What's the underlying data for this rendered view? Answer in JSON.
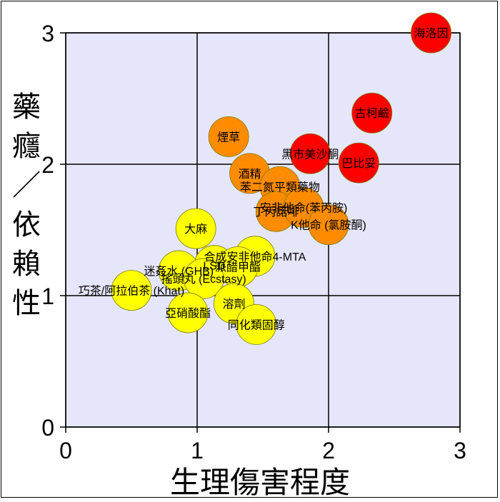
{
  "chart_data": {
    "type": "scatter",
    "xlabel": "生理傷害程度",
    "ylabel": "藥癮／依賴性",
    "xlim": [
      0,
      3
    ],
    "ylim": [
      0,
      3
    ],
    "x_ticks": [
      "0",
      "1",
      "2",
      "3"
    ],
    "y_ticks": [
      "0",
      "1",
      "2",
      "3"
    ],
    "grid": true,
    "background_color": "#e6e6fa",
    "points": [
      {
        "label": "海洛因",
        "x": 2.78,
        "y": 3.0,
        "color": "#ff0000"
      },
      {
        "label": "古柯鹼",
        "x": 2.33,
        "y": 2.39,
        "color": "#ff0000"
      },
      {
        "label": "黑市美沙酮",
        "x": 1.86,
        "y": 2.08,
        "color": "#ff0000"
      },
      {
        "label": "巴比妥",
        "x": 2.23,
        "y": 2.01,
        "color": "#ff0000"
      },
      {
        "label": "煙草",
        "x": 1.24,
        "y": 2.21,
        "color": "#ff8c00"
      },
      {
        "label": "酒精",
        "x": 1.4,
        "y": 1.93,
        "color": "#ff8c00"
      },
      {
        "label": "苯二氮平類藥物",
        "x": 1.63,
        "y": 1.83,
        "color": "#ff8c00"
      },
      {
        "label": "丁丙諾啡",
        "x": 1.6,
        "y": 1.64,
        "color": "#ff8c00"
      },
      {
        "label": "安非他命(苯丙胺)",
        "x": 1.81,
        "y": 1.67,
        "color": "#ff8c00"
      },
      {
        "label": "K他命 (氯胺酮)",
        "x": 2.0,
        "y": 1.54,
        "color": "#ff8c00"
      },
      {
        "label": "大麻",
        "x": 0.99,
        "y": 1.51,
        "color": "#ffff00"
      },
      {
        "label": "LSD",
        "x": 1.13,
        "y": 1.23,
        "color": "#ffff00"
      },
      {
        "label": "合成安非他命4-MTA",
        "x": 1.44,
        "y": 1.3,
        "color": "#ffff00"
      },
      {
        "label": "迷姦水 (GHB)",
        "x": 0.86,
        "y": 1.19,
        "color": "#ffff00"
      },
      {
        "label": "派醋甲酯",
        "x": 1.31,
        "y": 1.22,
        "color": "#ffff00"
      },
      {
        "label": "搖頭丸 (Ecstasy)",
        "x": 1.05,
        "y": 1.13,
        "color": "#ffff00"
      },
      {
        "label": "巧茶/阿拉伯茶 (Khat)",
        "x": 0.5,
        "y": 1.04,
        "color": "#ffff00"
      },
      {
        "label": "溶劑",
        "x": 1.28,
        "y": 0.94,
        "color": "#ffff00"
      },
      {
        "label": "亞硝酸酯",
        "x": 0.93,
        "y": 0.87,
        "color": "#ffff00"
      },
      {
        "label": "同化類固醇",
        "x": 1.45,
        "y": 0.78,
        "color": "#ffff00"
      }
    ]
  }
}
